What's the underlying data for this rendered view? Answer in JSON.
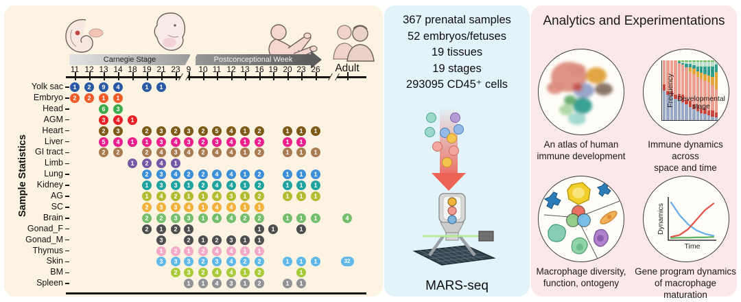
{
  "left_panel": {
    "vertical_label": "Sample Statistics",
    "timeline": {
      "carnegie_label": "Carnegie Stage",
      "week_label": "Postconceptional Week",
      "adult_label": "Adult"
    },
    "carnegie_ticks": [
      "11",
      "12",
      "13",
      "14",
      "18",
      "19",
      "21",
      "23"
    ],
    "week_ticks": [
      "9",
      "10",
      "11",
      "12",
      "13",
      "16",
      "19",
      "20",
      "23",
      "26"
    ]
  },
  "middle_panel": {
    "stats": [
      "367 prenatal samples",
      "52 embryos/fetuses",
      "19 tissues",
      "19 stages",
      "293095 CD45⁺ cells"
    ],
    "method_label": "MARS-seq"
  },
  "right_panel": {
    "title": "Analytics and Experimentations",
    "cards": [
      {
        "caption": [
          "An atlas of human",
          "immune development"
        ]
      },
      {
        "caption": [
          "Immune dynamics across",
          "space and time"
        ],
        "ylabel": "Frequency",
        "xlabel": [
          "Developmental",
          "stage"
        ]
      },
      {
        "caption": [
          "Macrophage diversity,",
          "function, ontogeny"
        ]
      },
      {
        "caption": [
          "Gene program dynamics",
          "of macrophage maturation"
        ],
        "ylabel": "Dynamics",
        "xlabel": "Time"
      }
    ]
  },
  "chart_data": [
    {
      "type": "heatmap",
      "name": "sample-statistics-dot-matrix",
      "title": "Sample Statistics",
      "x_groups": [
        "Carnegie Stage",
        "Postconceptional Week",
        "Adult"
      ],
      "columns": [
        "CS11",
        "CS12",
        "CS13",
        "CS14",
        "CS18",
        "CS19",
        "CS21",
        "CS23",
        "PCW9",
        "PCW10",
        "PCW11",
        "PCW12",
        "PCW13",
        "PCW16",
        "PCW19",
        "PCW20",
        "PCW23",
        "PCW26",
        "Adult"
      ],
      "rows": [
        {
          "label": "Yolk sac",
          "color": "#2a5aa6",
          "values": [
            1,
            2,
            9,
            4,
            null,
            1,
            1,
            null,
            null,
            null,
            null,
            null,
            null,
            null,
            null,
            null,
            null,
            null,
            null
          ]
        },
        {
          "label": "Embryo",
          "color": "#f15a29",
          "values": [
            2,
            2,
            1,
            1,
            null,
            null,
            null,
            null,
            null,
            null,
            null,
            null,
            null,
            null,
            null,
            null,
            null,
            null,
            null
          ]
        },
        {
          "label": "Head",
          "color": "#3cab4c",
          "values": [
            null,
            null,
            6,
            3,
            null,
            null,
            null,
            null,
            null,
            null,
            null,
            null,
            null,
            null,
            null,
            null,
            null,
            null,
            null
          ]
        },
        {
          "label": "AGM",
          "color": "#ea2127",
          "values": [
            null,
            null,
            3,
            4,
            1,
            null,
            null,
            null,
            null,
            null,
            null,
            null,
            null,
            null,
            null,
            null,
            null,
            null,
            null
          ]
        },
        {
          "label": "Heart",
          "color": "#7d5a17",
          "values": [
            null,
            null,
            2,
            3,
            null,
            2,
            3,
            2,
            3,
            2,
            5,
            4,
            1,
            2,
            null,
            1,
            1,
            1,
            null
          ]
        },
        {
          "label": "Liver",
          "color": "#ea1e8c",
          "values": [
            null,
            null,
            5,
            4,
            1,
            1,
            3,
            4,
            3,
            2,
            3,
            4,
            1,
            2,
            null,
            1,
            1,
            null,
            null
          ]
        },
        {
          "label": "GI tract",
          "color": "#a87c50",
          "values": [
            null,
            null,
            2,
            2,
            null,
            2,
            4,
            3,
            4,
            2,
            4,
            4,
            1,
            2,
            null,
            1,
            1,
            1,
            null
          ]
        },
        {
          "label": "Limb",
          "color": "#7457a5",
          "values": [
            null,
            null,
            null,
            null,
            1,
            2,
            4,
            1,
            null,
            null,
            null,
            null,
            null,
            null,
            null,
            null,
            null,
            null,
            null
          ]
        },
        {
          "label": "Lung",
          "color": "#3d8fd8",
          "values": [
            null,
            null,
            null,
            null,
            null,
            2,
            3,
            4,
            2,
            2,
            4,
            4,
            1,
            2,
            null,
            1,
            1,
            1,
            null
          ]
        },
        {
          "label": "Kidney",
          "color": "#1fa3a0",
          "values": [
            null,
            null,
            null,
            null,
            null,
            1,
            3,
            3,
            1,
            2,
            4,
            4,
            1,
            2,
            null,
            1,
            1,
            1,
            null
          ]
        },
        {
          "label": "AG",
          "color": "#b2bc31",
          "values": [
            null,
            null,
            null,
            null,
            null,
            1,
            4,
            2,
            1,
            1,
            4,
            3,
            1,
            2,
            null,
            1,
            1,
            1,
            null
          ]
        },
        {
          "label": "SC",
          "color": "#f2b13a",
          "values": [
            null,
            null,
            null,
            null,
            null,
            2,
            3,
            3,
            4,
            1,
            4,
            4,
            1,
            1,
            null,
            null,
            null,
            null,
            null
          ]
        },
        {
          "label": "Brain",
          "color": "#74be6e",
          "values": [
            null,
            null,
            null,
            null,
            null,
            2,
            2,
            3,
            3,
            1,
            4,
            4,
            2,
            2,
            null,
            1,
            1,
            1,
            4
          ]
        },
        {
          "label": "Gonad_F",
          "color": "#4e4e50",
          "values": [
            null,
            null,
            null,
            null,
            null,
            2,
            1,
            2,
            1,
            null,
            null,
            null,
            null,
            1,
            1,
            null,
            1,
            null,
            null
          ]
        },
        {
          "label": "Gonad_M",
          "color": "#4e4e50",
          "values": [
            null,
            null,
            null,
            null,
            null,
            null,
            3,
            null,
            2,
            1,
            2,
            3,
            1,
            1,
            null,
            null,
            null,
            null,
            null
          ]
        },
        {
          "label": "Thymus",
          "color": "#f2a8c6",
          "values": [
            null,
            null,
            null,
            null,
            null,
            null,
            1,
            2,
            1,
            2,
            4,
            4,
            1,
            1,
            null,
            null,
            null,
            null,
            null
          ]
        },
        {
          "label": "Skin",
          "color": "#5fb8e8",
          "values": [
            null,
            null,
            null,
            null,
            null,
            null,
            3,
            3,
            3,
            2,
            3,
            4,
            2,
            2,
            null,
            1,
            1,
            1,
            32
          ]
        },
        {
          "label": "BM",
          "color": "#a8cb3a",
          "values": [
            null,
            null,
            null,
            null,
            null,
            null,
            null,
            2,
            3,
            2,
            4,
            4,
            1,
            2,
            null,
            null,
            1,
            null,
            null
          ]
        },
        {
          "label": "Spleen",
          "color": "#909295",
          "values": [
            null,
            null,
            null,
            null,
            null,
            null,
            null,
            null,
            1,
            1,
            4,
            3,
            1,
            2,
            null,
            1,
            1,
            null,
            null
          ]
        }
      ]
    },
    {
      "type": "bar",
      "stacked": true,
      "name": "immune-dynamics-stacked-bars",
      "ylabel": "Frequency",
      "xlabel": "Developmental stage",
      "colors": [
        "#9aa8c7",
        "#c9463d",
        "#ec9f8e",
        "#e3a53b",
        "#2f9e8f",
        "#b8dcc8",
        "#72bd62"
      ],
      "bars": [
        [
          50,
          10,
          40,
          0,
          0,
          0,
          0
        ],
        [
          42,
          6,
          52,
          0,
          0,
          0,
          0
        ],
        [
          40,
          8,
          52,
          0,
          0,
          0,
          0
        ],
        [
          36,
          6,
          58,
          0,
          0,
          0,
          0
        ],
        [
          34,
          10,
          52,
          0,
          2,
          0,
          2
        ],
        [
          30,
          12,
          51,
          0,
          3,
          2,
          2
        ],
        [
          26,
          8,
          55,
          0,
          5,
          4,
          2
        ],
        [
          22,
          10,
          49,
          8,
          5,
          4,
          2
        ],
        [
          18,
          8,
          51,
          9,
          6,
          6,
          2
        ],
        [
          15,
          10,
          47,
          10,
          8,
          8,
          2
        ],
        [
          12,
          8,
          49,
          10,
          11,
          8,
          2
        ],
        [
          10,
          10,
          45,
          12,
          13,
          8,
          2
        ],
        [
          8,
          8,
          47,
          12,
          15,
          8,
          2
        ],
        [
          6,
          10,
          43,
          14,
          17,
          8,
          2
        ],
        [
          5,
          8,
          39,
          28,
          13,
          5,
          2
        ]
      ]
    },
    {
      "type": "line",
      "name": "gene-program-dynamics",
      "ylabel": "Dynamics",
      "xlabel": "Time",
      "series": [
        {
          "name": "declining-program",
          "color": "#6aaee8",
          "x": [
            0,
            0.2,
            0.4,
            0.6,
            0.8,
            1
          ],
          "y": [
            0.95,
            0.62,
            0.38,
            0.22,
            0.13,
            0.08
          ]
        },
        {
          "name": "rising-program",
          "color": "#e05548",
          "x": [
            0,
            0.2,
            0.4,
            0.6,
            0.8,
            1
          ],
          "y": [
            0.05,
            0.1,
            0.25,
            0.5,
            0.75,
            0.92
          ]
        },
        {
          "name": "flat-program",
          "color": "#62b862",
          "x": [
            0,
            0.2,
            0.4,
            0.6,
            0.8,
            1
          ],
          "y": [
            0.02,
            0.03,
            0.03,
            0.04,
            0.04,
            0.05
          ]
        }
      ]
    },
    {
      "type": "scatter",
      "name": "umap-atlas",
      "description": "UMAP atlas of human immune development",
      "cluster_colors": [
        "#dd8d7e",
        "#dd8d7e",
        "#dd8d7e",
        "#dfa13a",
        "#87705f",
        "#92a2c8",
        "#c4524a",
        "#2f9d8e",
        "#63aa6c",
        "#abd6a2",
        "#9ed8cc"
      ]
    }
  ]
}
